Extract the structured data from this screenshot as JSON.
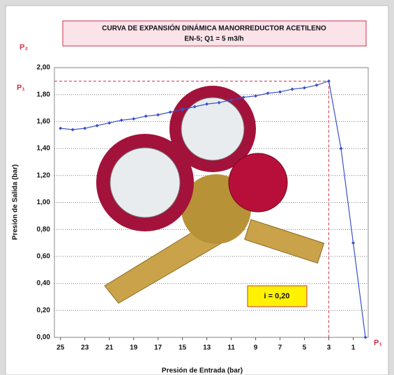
{
  "chart_data": {
    "type": "line",
    "title": "CURVA DE EXPANSIÓN DINÁMICA MANORREDUCTOR ACETILENO",
    "subtitle": "EN-5; Q1 = 5 m3/h",
    "x_label": "Presión de Entrada  (bar)",
    "y_label": "Presión de Salida  (bar)",
    "x": [
      25,
      24,
      23,
      22,
      21,
      20,
      19,
      18,
      17,
      16,
      15,
      14,
      13,
      12,
      11,
      10,
      9,
      8,
      7,
      6,
      5,
      4,
      3,
      2,
      1,
      0
    ],
    "series": [
      {
        "color": "#3a50c8",
        "values": [
          1.55,
          1.54,
          1.55,
          1.57,
          1.59,
          1.61,
          1.62,
          1.64,
          1.65,
          1.67,
          1.69,
          1.71,
          1.73,
          1.74,
          1.76,
          1.78,
          1.79,
          1.81,
          1.82,
          1.84,
          1.85,
          1.87,
          1.9,
          1.4,
          0.7,
          0.0
        ]
      }
    ],
    "xlim": [
      25.5,
      0
    ],
    "ylim": [
      0,
      2
    ],
    "xticks": [
      25,
      23,
      21,
      19,
      17,
      15,
      13,
      11,
      9,
      7,
      5,
      3,
      1
    ],
    "yticks": [
      {
        "value": 0,
        "label": "0,00"
      },
      {
        "value": 0.2,
        "label": "0,20"
      },
      {
        "value": 0.4,
        "label": "0,40"
      },
      {
        "value": 0.6,
        "label": "0,60"
      },
      {
        "value": 0.8,
        "label": "0,80"
      },
      {
        "value": 1.0,
        "label": "1,00"
      },
      {
        "value": 1.2,
        "label": "1,20"
      },
      {
        "value": 1.4,
        "label": "1,40"
      },
      {
        "value": 1.6,
        "label": "1,60"
      },
      {
        "value": 1.8,
        "label": "1,80"
      },
      {
        "value": 2.0,
        "label": "2,00"
      }
    ],
    "grid": true,
    "reference": {
      "x": 3,
      "y": 1.9,
      "color": "#d0304a"
    },
    "annotations": {
      "p2": "P₂",
      "p1_left": "P₁",
      "p1_bottom": "P₁",
      "note": "i = 0,20"
    }
  }
}
